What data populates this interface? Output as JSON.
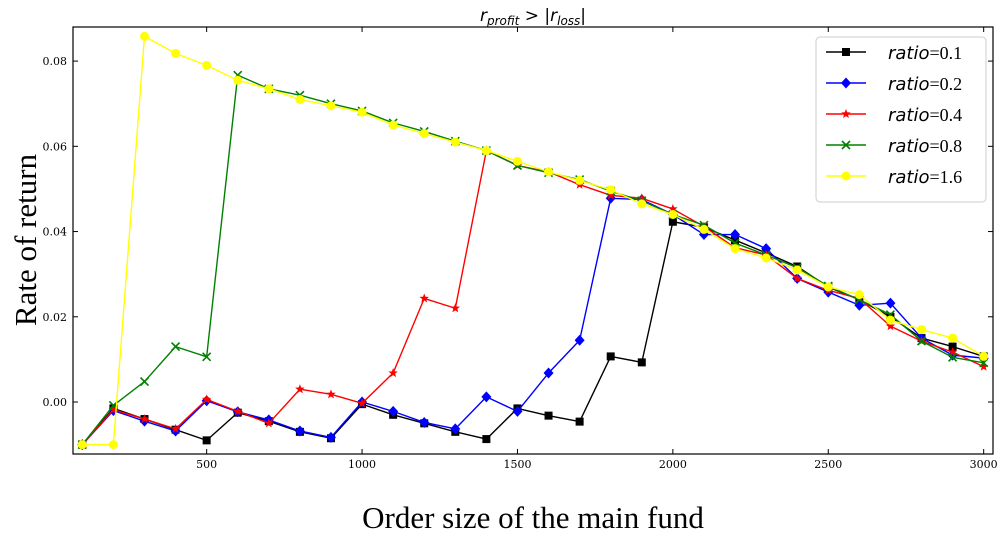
{
  "chart_data": {
    "type": "line",
    "title": "r_profit > |r_loss|",
    "title_parts": {
      "base1": "r",
      "sub1": "profit",
      "op": " > |",
      "base2": "r",
      "sub2": "loss",
      "close": "|"
    },
    "xlabel": "Order size of the main fund",
    "ylabel": "Rate of return",
    "xlim": [
      70,
      3030
    ],
    "ylim": [
      -0.0122,
      0.088
    ],
    "xticks": [
      500,
      1000,
      1500,
      2000,
      2500,
      3000
    ],
    "xtick_labels": [
      "500",
      "1000",
      "1500",
      "2000",
      "2500",
      "3000"
    ],
    "yticks": [
      0.0,
      0.02,
      0.04,
      0.06,
      0.08
    ],
    "ytick_labels": [
      "0.00",
      "0.02",
      "0.04",
      "0.06",
      "0.08"
    ],
    "grid": false,
    "legend_position": "top-right",
    "x": [
      100,
      200,
      300,
      400,
      500,
      600,
      700,
      800,
      900,
      1000,
      1100,
      1200,
      1300,
      1400,
      1500,
      1600,
      1700,
      1800,
      1900,
      2000,
      2100,
      2200,
      2300,
      2400,
      2500,
      2600,
      2700,
      2800,
      2900,
      3000
    ],
    "series": [
      {
        "name": "ratio=0.1",
        "label_italic": "ratio",
        "label_rest": "=0.1",
        "color": "#000000",
        "marker": "square",
        "values": [
          -0.01,
          -0.0015,
          -0.004,
          -0.0065,
          -0.009,
          -0.0025,
          -0.0045,
          -0.007,
          -0.0085,
          -0.0005,
          -0.003,
          -0.005,
          -0.007,
          -0.0087,
          -0.0015,
          -0.0032,
          -0.0046,
          0.0107,
          0.0093,
          0.0423,
          0.041,
          0.038,
          0.035,
          0.0318,
          0.027,
          0.024,
          0.02,
          0.015,
          0.013,
          0.0107
        ]
      },
      {
        "name": "ratio=0.2",
        "label_italic": "ratio",
        "label_rest": "=0.2",
        "color": "#0000ff",
        "marker": "diamond",
        "values": [
          -0.01,
          -0.002,
          -0.0045,
          -0.0068,
          0.0003,
          -0.0023,
          -0.0042,
          -0.0068,
          -0.0083,
          0.0,
          -0.0022,
          -0.0048,
          -0.0063,
          0.0012,
          -0.0022,
          0.0068,
          0.0145,
          0.0478,
          0.0475,
          0.044,
          0.0393,
          0.0393,
          0.036,
          0.029,
          0.0258,
          0.0227,
          0.0232,
          0.015,
          0.011,
          0.0103
        ]
      },
      {
        "name": "ratio=0.4",
        "label_italic": "ratio",
        "label_rest": "=0.4",
        "color": "#ff0000",
        "marker": "star",
        "values": [
          -0.01,
          -0.0018,
          -0.004,
          -0.0063,
          0.0006,
          -0.0022,
          -0.005,
          0.003,
          0.0018,
          -0.0003,
          0.0068,
          0.0243,
          0.022,
          0.059,
          0.0555,
          0.054,
          0.051,
          0.0485,
          0.0478,
          0.0453,
          0.0412,
          0.0362,
          0.0345,
          0.029,
          0.0262,
          0.0243,
          0.0178,
          0.0143,
          0.0117,
          0.0083
        ]
      },
      {
        "name": "ratio=0.8",
        "label_italic": "ratio",
        "label_rest": "=0.8",
        "color": "#008000",
        "marker": "x",
        "values": [
          -0.01,
          -0.0008,
          0.0048,
          0.013,
          0.0106,
          0.0767,
          0.0735,
          0.072,
          0.07,
          0.0683,
          0.0655,
          0.0635,
          0.0612,
          0.059,
          0.0555,
          0.0538,
          0.0522,
          0.0495,
          0.0472,
          0.044,
          0.0415,
          0.0373,
          0.0345,
          0.0315,
          0.0272,
          0.024,
          0.0205,
          0.0143,
          0.0105,
          0.0092
        ]
      },
      {
        "name": "ratio=1.6",
        "label_italic": "ratio",
        "label_rest": "=1.6",
        "color": "#ffff00",
        "marker": "circle",
        "values": [
          -0.01,
          -0.01,
          0.0858,
          0.0818,
          0.079,
          0.0755,
          0.0735,
          0.071,
          0.0695,
          0.068,
          0.065,
          0.063,
          0.061,
          0.059,
          0.0565,
          0.054,
          0.052,
          0.0498,
          0.0465,
          0.044,
          0.0405,
          0.036,
          0.0338,
          0.031,
          0.027,
          0.0252,
          0.0192,
          0.017,
          0.015,
          0.0107
        ]
      }
    ]
  }
}
